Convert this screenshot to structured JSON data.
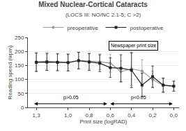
{
  "chart_data": {
    "type": "line",
    "title": "Mixed Nuclear-Cortical Cataracts",
    "subtitle": "(LOCS III: NO/NC 2.1-5; C >2)",
    "xlabel": "Print size (logRAD)",
    "ylabel": "Reading speed (wpm)",
    "x": [
      1.3,
      1.2,
      1.1,
      1.0,
      0.9,
      0.8,
      0.7,
      0.6,
      0.5,
      0.4,
      0.3,
      0.2,
      0.1,
      0.0
    ],
    "series": [
      {
        "name": "preoperative",
        "color": "#999999",
        "marker": "diamond",
        "values": [
          163,
          165,
          163,
          161,
          168,
          165,
          163,
          158,
          128,
          138,
          130,
          100,
          78,
          76
        ],
        "errors": [
          33,
          32,
          30,
          30,
          28,
          28,
          28,
          32,
          38,
          60,
          40,
          30,
          25,
          18
        ]
      },
      {
        "name": "postoperative",
        "color": "#222222",
        "marker": "square",
        "values": [
          161,
          162,
          161,
          160,
          167,
          162,
          158,
          142,
          140,
          133,
          80,
          110,
          80,
          76
        ],
        "errors": [
          33,
          30,
          30,
          30,
          30,
          30,
          30,
          35,
          48,
          62,
          42,
          38,
          25,
          18
        ]
      }
    ],
    "xlim": [
      1.38,
      -0.05
    ],
    "xticks": [
      {
        "value": 1.3,
        "label": "1,3"
      },
      {
        "value": 1.0,
        "label": "1,0"
      },
      {
        "value": 0.8,
        "label": "0,8"
      },
      {
        "value": 0.6,
        "label": "0,6"
      },
      {
        "value": 0.4,
        "label": "0,4"
      },
      {
        "value": 0.2,
        "label": "0,2"
      },
      {
        "value": 0.0,
        "label": "0,0"
      }
    ],
    "ylim": [
      0,
      250
    ],
    "yticks": [
      0,
      50,
      100,
      150,
      200,
      250
    ],
    "grid": "y",
    "legend": "top",
    "annotations": [
      {
        "text": "Newspaper print size",
        "x": 0.38,
        "y": 220,
        "box": true
      },
      {
        "text": "p>0.05",
        "x": 0.97,
        "y": 20,
        "span": [
          1.33,
          0.63
        ],
        "span_y": 13
      },
      {
        "text": "p<0.05",
        "x": 0.33,
        "y": 20,
        "span": [
          0.61,
          0.01
        ],
        "span_y": 13
      }
    ]
  }
}
